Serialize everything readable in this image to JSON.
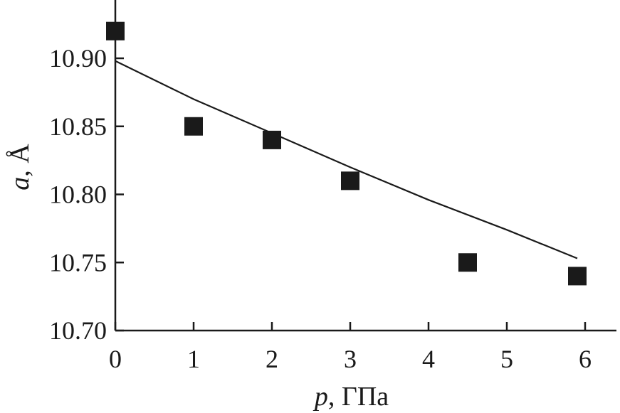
{
  "chart_data": {
    "type": "scatter",
    "xlabel_var": "p",
    "xlabel_unit": ", ГПа",
    "ylabel_var": "a",
    "ylabel_unit": ", Å",
    "xlim": [
      0,
      6.3
    ],
    "ylim": [
      10.7,
      10.935
    ],
    "x_ticks": [
      0,
      1,
      2,
      3,
      4,
      5,
      6
    ],
    "x_tick_labels": [
      "0",
      "1",
      "2",
      "3",
      "4",
      "5",
      "6"
    ],
    "y_ticks": [
      10.7,
      10.75,
      10.8,
      10.85,
      10.9
    ],
    "y_tick_labels": [
      "10.70",
      "10.75",
      "10.80",
      "10.85",
      "10.90"
    ],
    "grid": false,
    "series": [
      {
        "type": "scatter",
        "marker": "square",
        "x": [
          0,
          1,
          2,
          3,
          4.5,
          5.9
        ],
        "y": [
          10.92,
          10.85,
          10.84,
          10.81,
          10.75,
          10.74
        ]
      },
      {
        "type": "line",
        "x": [
          0,
          1,
          2,
          3,
          4,
          5,
          5.9
        ],
        "y": [
          10.898,
          10.87,
          10.845,
          10.82,
          10.796,
          10.774,
          10.753
        ]
      }
    ]
  }
}
